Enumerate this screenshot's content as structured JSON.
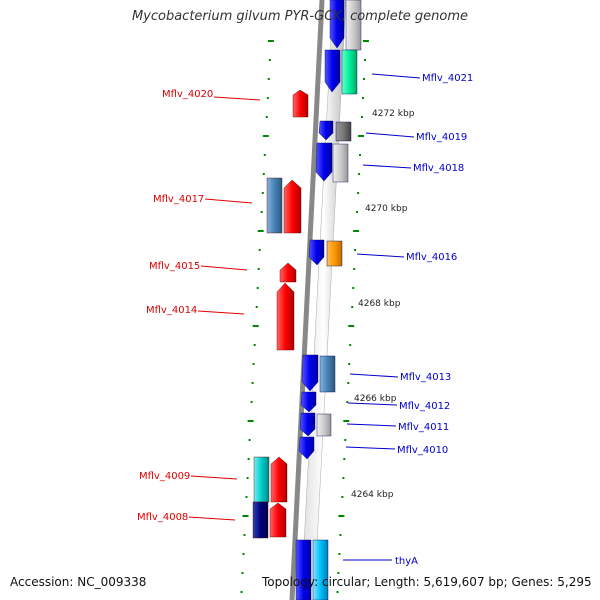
{
  "title": "Mycobacterium gilvum PYR-GCK, complete genome",
  "footer": {
    "accession": "Accession: NC_009338",
    "topology": "Topology: circular; Length: 5,619,607 bp; Genes: 5,295"
  },
  "colors": {
    "strand_left_label": "#dd0000",
    "strand_right_label": "#0000cc",
    "backbone": "#888888",
    "tick": "#008800"
  },
  "scale_labels": [
    "4272 kbp",
    "4270 kbp",
    "4268 kbp",
    "4266 kbp",
    "4264 kbp"
  ],
  "genes_left": [
    {
      "label": "Mflv_4020",
      "color": "red"
    },
    {
      "label": "Mflv_4017",
      "color": "red/steelblue"
    },
    {
      "label": "Mflv_4015",
      "color": "red"
    },
    {
      "label": "Mflv_4014",
      "color": "red"
    },
    {
      "label": "Mflv_4009",
      "color": "red/cyan"
    },
    {
      "label": "Mflv_4008",
      "color": "red/navy"
    }
  ],
  "genes_right": [
    {
      "label": "Mflv_4021",
      "color": "blue/springgreen"
    },
    {
      "label": "Mflv_4019",
      "color": "blue/gray"
    },
    {
      "label": "Mflv_4018",
      "color": "blue/silver"
    },
    {
      "label": "Mflv_4016",
      "color": "blue/orange"
    },
    {
      "label": "Mflv_4013",
      "color": "blue/steelblue"
    },
    {
      "label": "Mflv_4012",
      "color": "blue"
    },
    {
      "label": "Mflv_4011",
      "color": "blue/silver"
    },
    {
      "label": "Mflv_4010",
      "color": "blue"
    },
    {
      "label": "thyA",
      "color": "blue/deepskyblue"
    }
  ]
}
